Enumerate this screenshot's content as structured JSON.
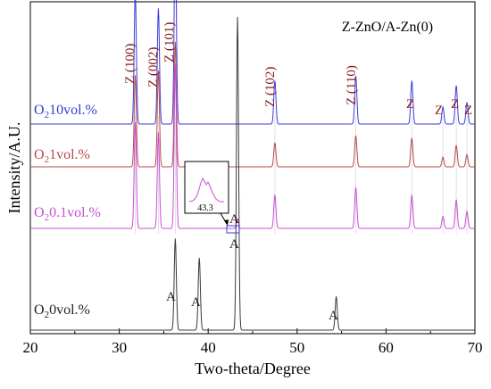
{
  "chart_data": {
    "type": "line",
    "title": "Z-ZnO/A-Zn(0)",
    "xlabel": "Two-theta/Degree",
    "ylabel": "Intensity/A.U.",
    "xlim": [
      20,
      70
    ],
    "xticks": [
      20,
      30,
      40,
      50,
      60,
      70
    ],
    "grid": false,
    "legend_position": "inline-left",
    "series": [
      {
        "name": "O2=10vol.%",
        "label_text": "10vol.%",
        "color": "#3b3bd6",
        "peaks": [
          [
            31.8,
            0.55
          ],
          [
            34.4,
            0.48
          ],
          [
            36.3,
            0.82
          ],
          [
            47.5,
            0.18
          ],
          [
            56.6,
            0.2
          ],
          [
            62.9,
            0.18
          ],
          [
            66.4,
            0.07
          ],
          [
            67.9,
            0.16
          ],
          [
            69.1,
            0.09
          ]
        ]
      },
      {
        "name": "O2=1vol.%",
        "label_text": "1vol.%",
        "color": "#b84a4a",
        "peaks": [
          [
            31.8,
            0.38
          ],
          [
            34.4,
            0.4
          ],
          [
            36.3,
            0.52
          ],
          [
            47.5,
            0.1
          ],
          [
            56.6,
            0.13
          ],
          [
            62.9,
            0.12
          ],
          [
            66.4,
            0.04
          ],
          [
            67.9,
            0.09
          ],
          [
            69.1,
            0.05
          ]
        ]
      },
      {
        "name": "O2=0.1vol.%",
        "label_text": "0.1vol.%",
        "color": "#c94fd6",
        "peaks": [
          [
            31.8,
            0.44
          ],
          [
            34.4,
            0.4
          ],
          [
            36.3,
            0.68
          ],
          [
            43.3,
            0.04
          ],
          [
            47.5,
            0.14
          ],
          [
            56.6,
            0.17
          ],
          [
            62.9,
            0.14
          ],
          [
            66.4,
            0.05
          ],
          [
            67.9,
            0.12
          ],
          [
            69.1,
            0.07
          ]
        ]
      },
      {
        "name": "O2=0vol.%",
        "label_text": "0vol.%",
        "color": "#3a3a3a",
        "peaks": [
          [
            36.3,
            0.38
          ],
          [
            39.0,
            0.3
          ],
          [
            43.3,
            1.3
          ],
          [
            54.4,
            0.14
          ]
        ]
      }
    ],
    "annotations": {
      "zno_peak_labels": [
        "Z (100)",
        "Z (002)",
        "Z (101)",
        "Z (102)",
        "Z (110)",
        "Z",
        "Z",
        "Z",
        "Z"
      ],
      "zn_peak_labels": [
        "A",
        "A",
        "A",
        "A",
        "A"
      ],
      "inset_label": "43.3"
    }
  }
}
